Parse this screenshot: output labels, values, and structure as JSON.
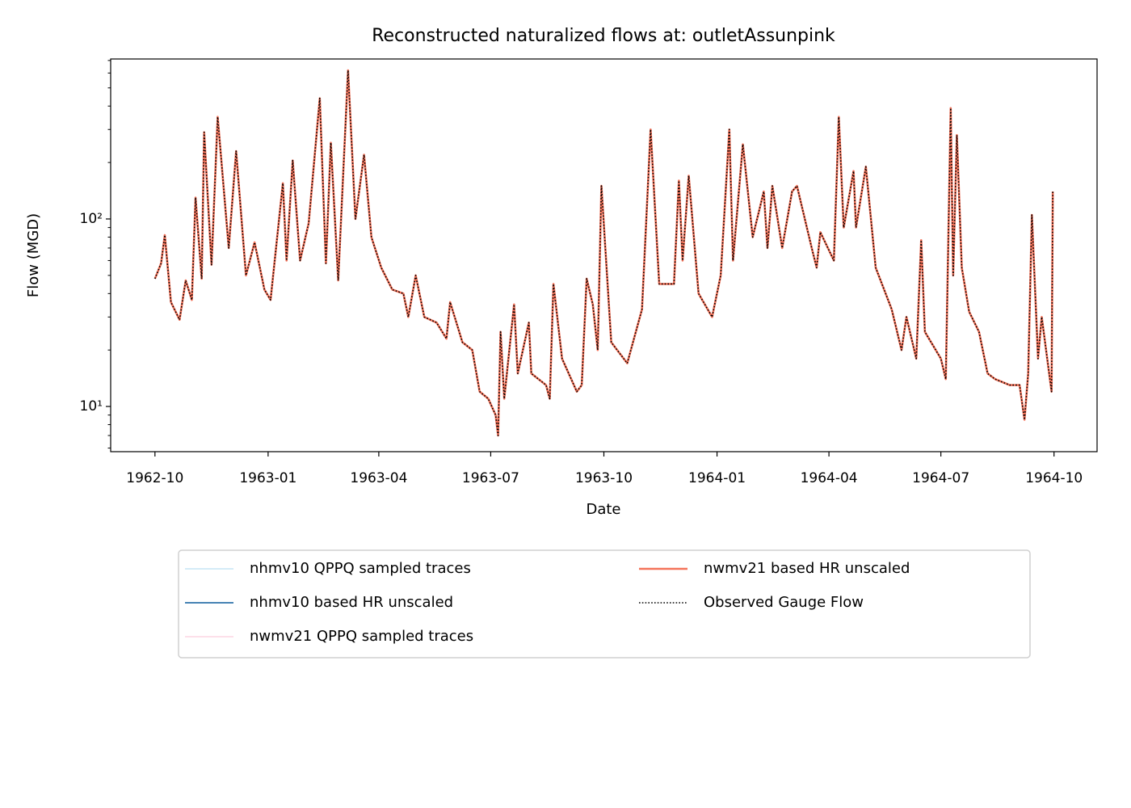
{
  "chart_data": {
    "type": "line",
    "title": "Reconstructed naturalized flows at: outletAssunpink",
    "xlabel": "Date",
    "ylabel": "Flow (MGD)",
    "ylog": true,
    "grid": false,
    "legend_loc": "below",
    "xlim": [
      "1962-08-26",
      "1964-11-05"
    ],
    "xticks": [
      "1962-10",
      "1963-01",
      "1963-04",
      "1963-07",
      "1963-10",
      "1964-01",
      "1964-04",
      "1964-07",
      "1964-10"
    ],
    "ylim": [
      5.74,
      713
    ],
    "yticks": [
      {
        "value": 10,
        "label": "10¹"
      },
      {
        "value": 100,
        "label": "10²"
      }
    ],
    "yminorticks": [
      6,
      7,
      8,
      9,
      20,
      30,
      40,
      50,
      60,
      70,
      80,
      90,
      200,
      300,
      400,
      500,
      600,
      700
    ],
    "x": [
      "1962-10-01",
      "1962-10-06",
      "1962-10-09",
      "1962-10-14",
      "1962-10-21",
      "1962-10-26",
      "1962-10-31",
      "1962-11-03",
      "1962-11-08",
      "1962-11-10",
      "1962-11-16",
      "1962-11-21",
      "1962-11-30",
      "1962-12-06",
      "1962-12-14",
      "1962-12-21",
      "1962-12-29",
      "1963-01-03",
      "1963-01-13",
      "1963-01-16",
      "1963-01-21",
      "1963-01-27",
      "1963-02-03",
      "1963-02-12",
      "1963-02-17",
      "1963-02-21",
      "1963-02-27",
      "1963-03-07",
      "1963-03-13",
      "1963-03-20",
      "1963-03-26",
      "1963-04-03",
      "1963-04-12",
      "1963-04-21",
      "1963-04-25",
      "1963-05-01",
      "1963-05-08",
      "1963-05-18",
      "1963-05-26",
      "1963-05-29",
      "1963-06-08",
      "1963-06-16",
      "1963-06-22",
      "1963-06-29",
      "1963-07-05",
      "1963-07-07",
      "1963-07-09",
      "1963-07-12",
      "1963-07-20",
      "1963-07-23",
      "1963-08-01",
      "1963-08-03",
      "1963-08-15",
      "1963-08-18",
      "1963-08-21",
      "1963-08-28",
      "1963-09-09",
      "1963-09-13",
      "1963-09-17",
      "1963-09-22",
      "1963-09-26",
      "1963-09-29",
      "1963-10-07",
      "1963-10-20",
      "1963-11-01",
      "1963-11-08",
      "1963-11-15",
      "1963-11-27",
      "1963-12-01",
      "1963-12-04",
      "1963-12-09",
      "1963-12-17",
      "1963-12-28",
      "1964-01-04",
      "1964-01-11",
      "1964-01-14",
      "1964-01-22",
      "1964-01-30",
      "1964-02-08",
      "1964-02-11",
      "1964-02-15",
      "1964-02-23",
      "1964-03-02",
      "1964-03-06",
      "1964-03-18",
      "1964-03-22",
      "1964-03-25",
      "1964-04-05",
      "1964-04-09",
      "1964-04-13",
      "1964-04-21",
      "1964-04-23",
      "1964-05-01",
      "1964-05-09",
      "1964-05-22",
      "1964-05-30",
      "1964-06-03",
      "1964-06-11",
      "1964-06-15",
      "1964-06-18",
      "1964-07-01",
      "1964-07-05",
      "1964-07-09",
      "1964-07-11",
      "1964-07-14",
      "1964-07-18",
      "1964-07-24",
      "1964-08-01",
      "1964-08-08",
      "1964-08-14",
      "1964-08-26",
      "1964-09-03",
      "1964-09-07",
      "1964-09-10",
      "1964-09-13",
      "1964-09-18",
      "1964-09-21",
      "1964-09-29",
      "1964-09-30"
    ],
    "series": [
      {
        "name": "nhmv10 QPPQ sampled traces",
        "color": "#d4ebf7",
        "style": "solid",
        "width": 2,
        "values": [
          48,
          58,
          82,
          36,
          29,
          47,
          37,
          130,
          48,
          290,
          57,
          350,
          70,
          230,
          50,
          75,
          42,
          37,
          155,
          60,
          205,
          60,
          95,
          440,
          58,
          255,
          47,
          620,
          100,
          220,
          80,
          55,
          42,
          40,
          30,
          50,
          30,
          28,
          23,
          36,
          22,
          20,
          12,
          11,
          9,
          7,
          25,
          11,
          35,
          15,
          28,
          15,
          13,
          11,
          45,
          18,
          12,
          13,
          48,
          35,
          20,
          150,
          22,
          17,
          33,
          300,
          45,
          45,
          160,
          60,
          170,
          40,
          30,
          50,
          300,
          60,
          250,
          80,
          140,
          70,
          150,
          70,
          140,
          150,
          70,
          55,
          85,
          60,
          350,
          90,
          180,
          90,
          190,
          55,
          33,
          20,
          30,
          18,
          77,
          25,
          18,
          14,
          390,
          50,
          280,
          55,
          32,
          25,
          15,
          14,
          13,
          13,
          8.5,
          15,
          105,
          18,
          30,
          12,
          140
        ]
      },
      {
        "name": "nhmv10 based HR unscaled",
        "color": "#4682b4",
        "style": "solid",
        "width": 2,
        "values": [
          48,
          58,
          82,
          36,
          29,
          47,
          37,
          130,
          48,
          290,
          57,
          350,
          70,
          230,
          50,
          75,
          42,
          37,
          155,
          60,
          205,
          60,
          95,
          440,
          58,
          255,
          47,
          620,
          100,
          220,
          80,
          55,
          42,
          40,
          30,
          50,
          30,
          28,
          23,
          36,
          22,
          20,
          12,
          11,
          9,
          7,
          25,
          11,
          35,
          15,
          28,
          15,
          13,
          11,
          45,
          18,
          12,
          13,
          48,
          35,
          20,
          150,
          22,
          17,
          33,
          300,
          45,
          45,
          160,
          60,
          170,
          40,
          30,
          50,
          300,
          60,
          250,
          80,
          140,
          70,
          150,
          70,
          140,
          150,
          70,
          55,
          85,
          60,
          350,
          90,
          180,
          90,
          190,
          55,
          33,
          20,
          30,
          18,
          77,
          25,
          18,
          14,
          390,
          50,
          280,
          55,
          32,
          25,
          15,
          14,
          13,
          13,
          8.5,
          15,
          105,
          18,
          30,
          12,
          140
        ]
      },
      {
        "name": "nwmv21 QPPQ sampled traces",
        "color": "#fde0ea",
        "style": "solid",
        "width": 2,
        "values": [
          48,
          58,
          82,
          36,
          29,
          47,
          37,
          130,
          48,
          290,
          57,
          350,
          70,
          230,
          50,
          75,
          42,
          37,
          155,
          60,
          205,
          60,
          95,
          440,
          58,
          255,
          47,
          620,
          100,
          220,
          80,
          55,
          42,
          40,
          30,
          50,
          30,
          28,
          23,
          36,
          22,
          20,
          12,
          11,
          9,
          7,
          25,
          11,
          35,
          15,
          28,
          15,
          13,
          11,
          45,
          18,
          12,
          13,
          48,
          35,
          20,
          150,
          22,
          17,
          33,
          300,
          45,
          45,
          160,
          60,
          170,
          40,
          30,
          50,
          300,
          60,
          250,
          80,
          140,
          70,
          150,
          70,
          140,
          150,
          70,
          55,
          85,
          60,
          350,
          90,
          180,
          90,
          190,
          55,
          33,
          20,
          30,
          18,
          77,
          25,
          18,
          14,
          390,
          50,
          280,
          55,
          32,
          25,
          15,
          14,
          13,
          13,
          8.5,
          15,
          105,
          18,
          30,
          12,
          140
        ]
      },
      {
        "name": "nwmv21 based HR unscaled",
        "color": "#f4735a",
        "style": "solid",
        "width": 2.6,
        "values": [
          48,
          58,
          82,
          36,
          29,
          47,
          37,
          130,
          48,
          290,
          57,
          350,
          70,
          230,
          50,
          75,
          42,
          37,
          155,
          60,
          205,
          60,
          95,
          440,
          58,
          255,
          47,
          620,
          100,
          220,
          80,
          55,
          42,
          40,
          30,
          50,
          30,
          28,
          23,
          36,
          22,
          20,
          12,
          11,
          9,
          7,
          25,
          11,
          35,
          15,
          28,
          15,
          13,
          11,
          45,
          18,
          12,
          13,
          48,
          35,
          20,
          150,
          22,
          17,
          33,
          300,
          45,
          45,
          160,
          60,
          170,
          40,
          30,
          50,
          300,
          60,
          250,
          80,
          140,
          70,
          150,
          70,
          140,
          150,
          70,
          55,
          85,
          60,
          350,
          90,
          180,
          90,
          190,
          55,
          33,
          20,
          30,
          18,
          77,
          25,
          18,
          14,
          390,
          50,
          280,
          55,
          32,
          25,
          15,
          14,
          13,
          13,
          8.5,
          15,
          105,
          18,
          30,
          12,
          140
        ]
      },
      {
        "name": "Observed Gauge Flow",
        "color": "#000000",
        "style": "dotted",
        "width": 1.6,
        "values": [
          48,
          58,
          82,
          36,
          29,
          47,
          37,
          130,
          48,
          290,
          57,
          350,
          70,
          230,
          50,
          75,
          42,
          37,
          155,
          60,
          205,
          60,
          95,
          440,
          58,
          255,
          47,
          620,
          100,
          220,
          80,
          55,
          42,
          40,
          30,
          50,
          30,
          28,
          23,
          36,
          22,
          20,
          12,
          11,
          9,
          7,
          25,
          11,
          35,
          15,
          28,
          15,
          13,
          11,
          45,
          18,
          12,
          13,
          48,
          35,
          20,
          150,
          22,
          17,
          33,
          300,
          45,
          45,
          160,
          60,
          170,
          40,
          30,
          50,
          300,
          60,
          250,
          80,
          140,
          70,
          150,
          70,
          140,
          150,
          70,
          55,
          85,
          60,
          350,
          90,
          180,
          90,
          190,
          55,
          33,
          20,
          30,
          18,
          77,
          25,
          18,
          14,
          390,
          50,
          280,
          55,
          32,
          25,
          15,
          14,
          13,
          13,
          8.5,
          15,
          105,
          18,
          30,
          12,
          140
        ]
      }
    ]
  }
}
